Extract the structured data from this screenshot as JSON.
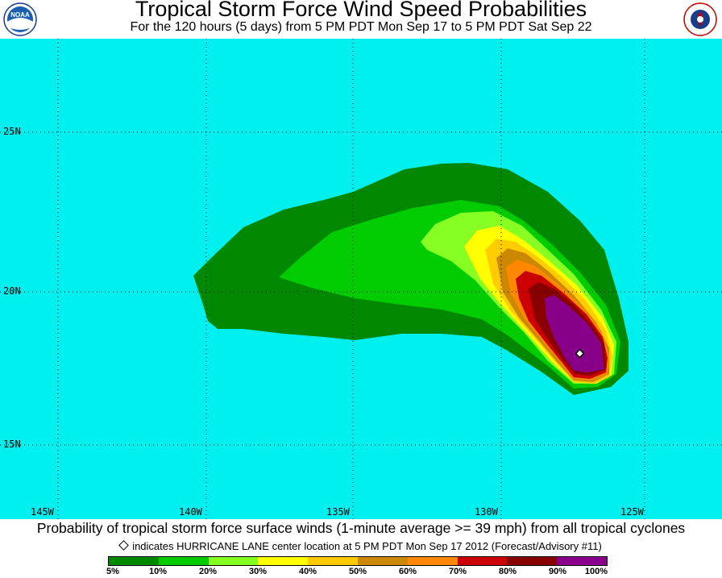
{
  "header": {
    "title": "Tropical Storm Force Wind Speed Probabilities",
    "subtitle": "For the 120 hours (5 days) from 5 PM PDT Mon Sep 17 to 5 PM PDT Sat Sep 22",
    "left_logo_icon": "noaa-logo-icon",
    "right_logo_icon": "nws-logo-icon"
  },
  "map": {
    "ocean_color": "#00f0f0",
    "lat_labels": [
      "25N",
      "20N",
      "15N"
    ],
    "lon_labels": [
      "145W",
      "140W",
      "135W",
      "130W",
      "125W"
    ],
    "storm_center_icon": "diamond-marker-icon"
  },
  "caption": "Probability of tropical storm force surface winds (1-minute average >= 39 mph) from all tropical cyclones",
  "note": "indicates HURRICANE LANE center location at 5 PM PDT Mon Sep 17 2012 (Forecast/Advisory #11)",
  "legend": {
    "colors": [
      "#008800",
      "#00cc00",
      "#88ff22",
      "#ffff00",
      "#ffcc00",
      "#cc8800",
      "#ff8800",
      "#cc0000",
      "#880000",
      "#880088"
    ],
    "labels": [
      "5%",
      "10%",
      "20%",
      "30%",
      "40%",
      "50%",
      "60%",
      "70%",
      "80%",
      "90%",
      "100%"
    ]
  }
}
